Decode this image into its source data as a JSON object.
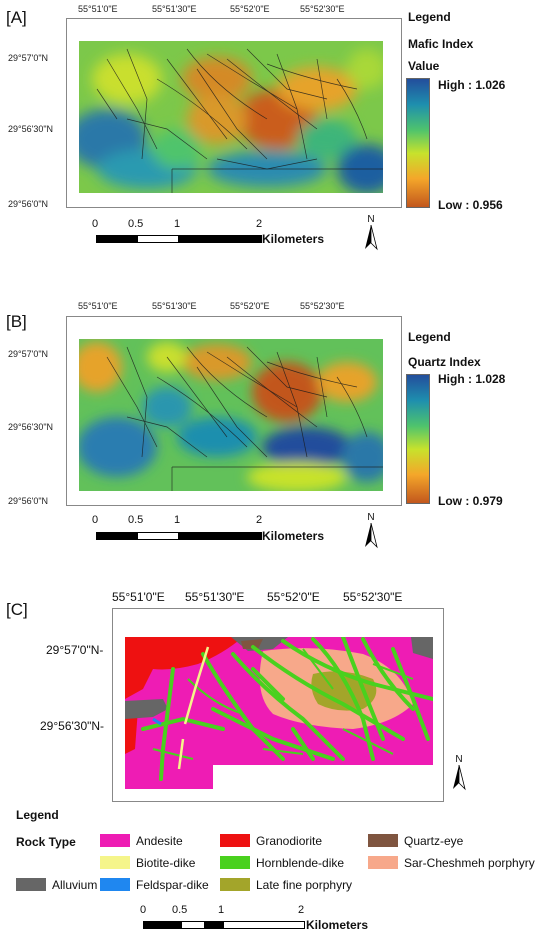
{
  "panels": {
    "a": {
      "label": "[A]",
      "top_ticks": [
        "55°51'0\"E",
        "55°51'30\"E",
        "55°52'0\"E",
        "55°52'30\"E"
      ],
      "left_ticks": [
        "29°57'0\"N",
        "29°56'30\"N",
        "29°56'0\"N"
      ],
      "legend_title": "Legend",
      "index_name": "Mafic Index",
      "value_label": "Value",
      "high": "High : 1.026",
      "low": "Low : 0.956"
    },
    "b": {
      "label": "[B]",
      "top_ticks": [
        "55°51'0\"E",
        "55°51'30\"E",
        "55°52'0\"E",
        "55°52'30\"E"
      ],
      "left_ticks": [
        "29°57'0\"N",
        "29°56'30\"N",
        "29°56'0\"N"
      ],
      "legend_title": "Legend",
      "index_name": "Quartz Index",
      "high": "High : 1.028",
      "low": "Low : 0.979"
    },
    "c": {
      "label": "[C]",
      "top_ticks": [
        "55°51'0\"E",
        "55°51'30\"E",
        "55°52'0\"E",
        "55°52'30\"E"
      ],
      "left_ticks": [
        "29°57'0\"N-",
        "29°56'30\"N-"
      ],
      "legend_title": "Legend",
      "rock_type_label": "Rock Type",
      "rock_types": [
        {
          "name": "Andesite",
          "color": "#ee1cb4"
        },
        {
          "name": "Granodiorite",
          "color": "#ee1111"
        },
        {
          "name": "Quartz-eye",
          "color": "#7f5540"
        },
        {
          "name": "Biotite-dike",
          "color": "#f5f58a"
        },
        {
          "name": "Hornblende-dike",
          "color": "#49d11e"
        },
        {
          "name": "Sar-Cheshmeh porphyry",
          "color": "#f7a88a"
        },
        {
          "name": "Alluvium",
          "color": "#666666"
        },
        {
          "name": "Feldspar-dike",
          "color": "#1f87f0"
        },
        {
          "name": "Late fine porphyry",
          "color": "#a3a52a"
        }
      ]
    }
  },
  "scalebar": {
    "labels": [
      "0",
      "0.5",
      "1",
      "2"
    ],
    "unit": "Kilometers"
  },
  "north": "N"
}
